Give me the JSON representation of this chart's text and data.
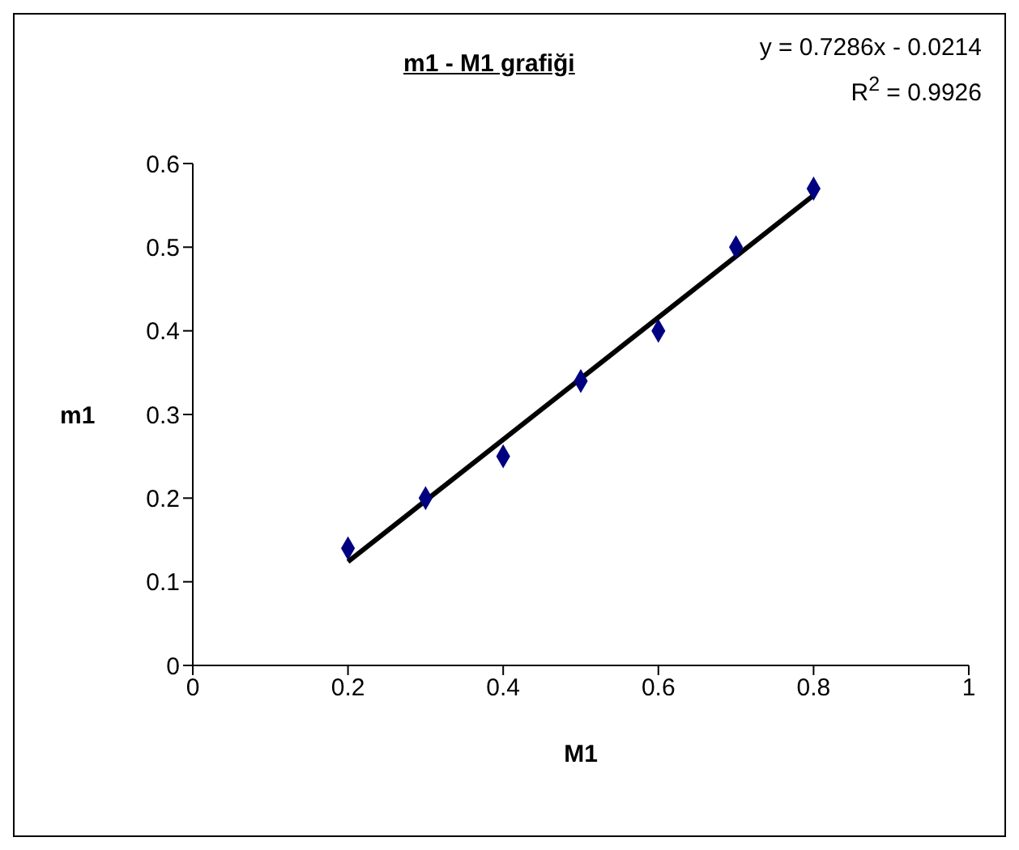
{
  "chart_data": {
    "type": "scatter",
    "title": "m1 - M1 grafiği",
    "xlabel": "M1",
    "ylabel": "m1",
    "annotations": [
      "y = 0.7286x - 0.0214",
      "R$^{2}$ = 0.9926"
    ],
    "xlim": [
      0,
      1
    ],
    "xticks": [
      0,
      0.2,
      0.4,
      0.6,
      0.8,
      1
    ],
    "ylim": [
      0,
      0.6
    ],
    "yticks": [
      0,
      0.1,
      0.2,
      0.3,
      0.4,
      0.5,
      0.6
    ],
    "marker": "diamond",
    "series": [
      {
        "color": "#000080",
        "x": [
          0.2,
          0.3,
          0.4,
          0.5,
          0.6,
          0.7,
          0.8
        ],
        "values": [
          0.14,
          0.2,
          0.25,
          0.34,
          0.4,
          0.5,
          0.57
        ]
      },
      {
        "type": "line",
        "marker": "none",
        "color": "#000000",
        "x": [
          0.2,
          0.8
        ],
        "values": [
          0.124,
          0.562
        ]
      }
    ]
  }
}
